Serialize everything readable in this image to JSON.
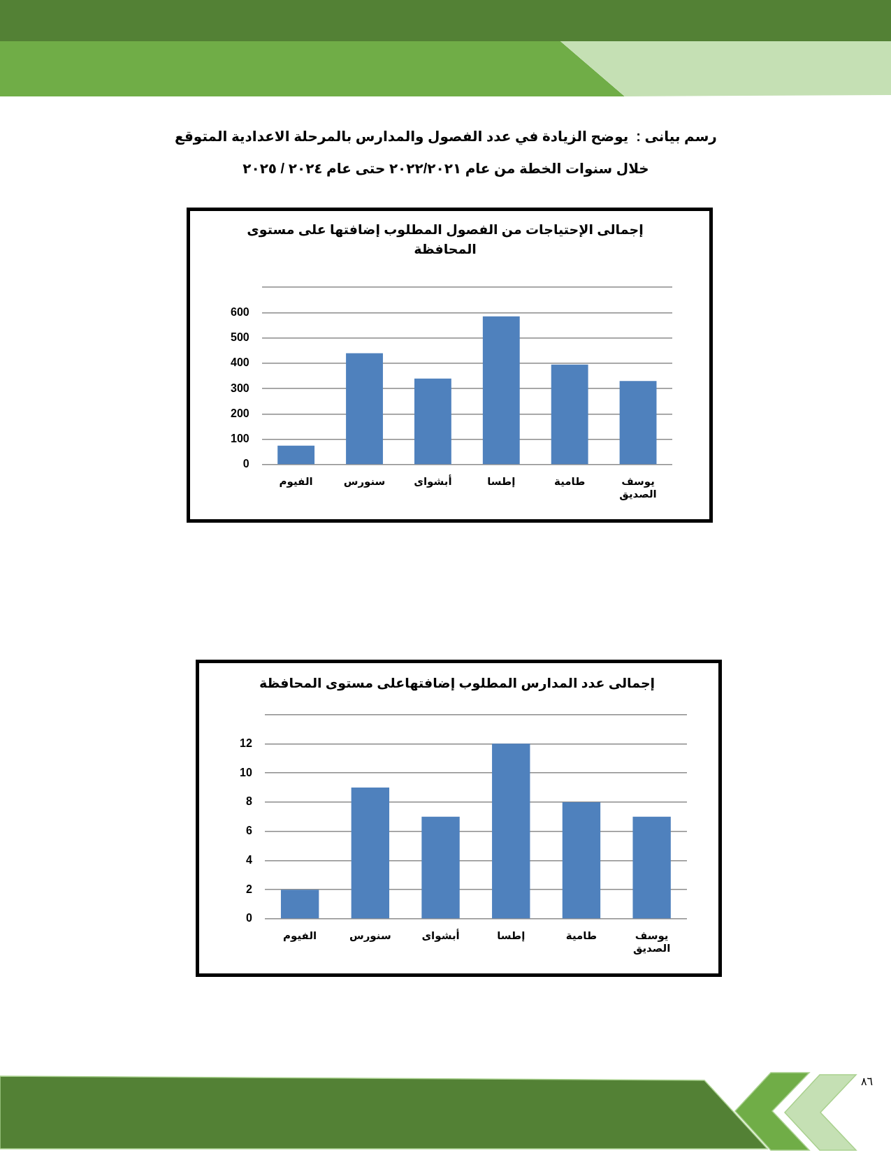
{
  "chart_data": [
    {
      "type": "bar",
      "title": "إجمالى الإحتياجات من الفصول المطلوب إضافتها على مستوى المحافظة",
      "categories": [
        "الفيوم",
        "سنورس",
        "أبشواى",
        "إطسا",
        "طامية",
        "يوسف الصديق"
      ],
      "values": [
        75,
        440,
        340,
        585,
        395,
        330
      ],
      "color": "#4f81bd",
      "ylim": [
        0,
        700
      ],
      "yticks": [
        0,
        100,
        200,
        300,
        400,
        500,
        600,
        {
          "value": 700,
          "label": null
        }
      ],
      "grid": "y",
      "annotations": [
        "رسم بيانى :  يوضح الزيادة في عدد الفصول والمدارس بالمرحلة الاعدادية المتوقع خلال سنوات الخطة من عام ٢٠٢٢/٢٠٢١ حتى عام ٢٠٢٤ / ٢٠٢٥"
      ]
    },
    {
      "type": "bar",
      "title": "إجمالى عدد المدارس المطلوب إضافتهاعلى مستوى المحافظة",
      "categories": [
        "الفيوم",
        "سنورس",
        "أبشواى",
        "إطسا",
        "طامية",
        "يوسف الصديق"
      ],
      "values": [
        2,
        9,
        7,
        12,
        8,
        7
      ],
      "color": "#4f81bd",
      "ylim": [
        0,
        14
      ],
      "yticks": [
        0,
        2,
        4,
        6,
        8,
        10,
        12,
        {
          "value": 14,
          "label": null
        }
      ],
      "grid": "y",
      "annotations": [
        "٨٦"
      ]
    }
  ]
}
